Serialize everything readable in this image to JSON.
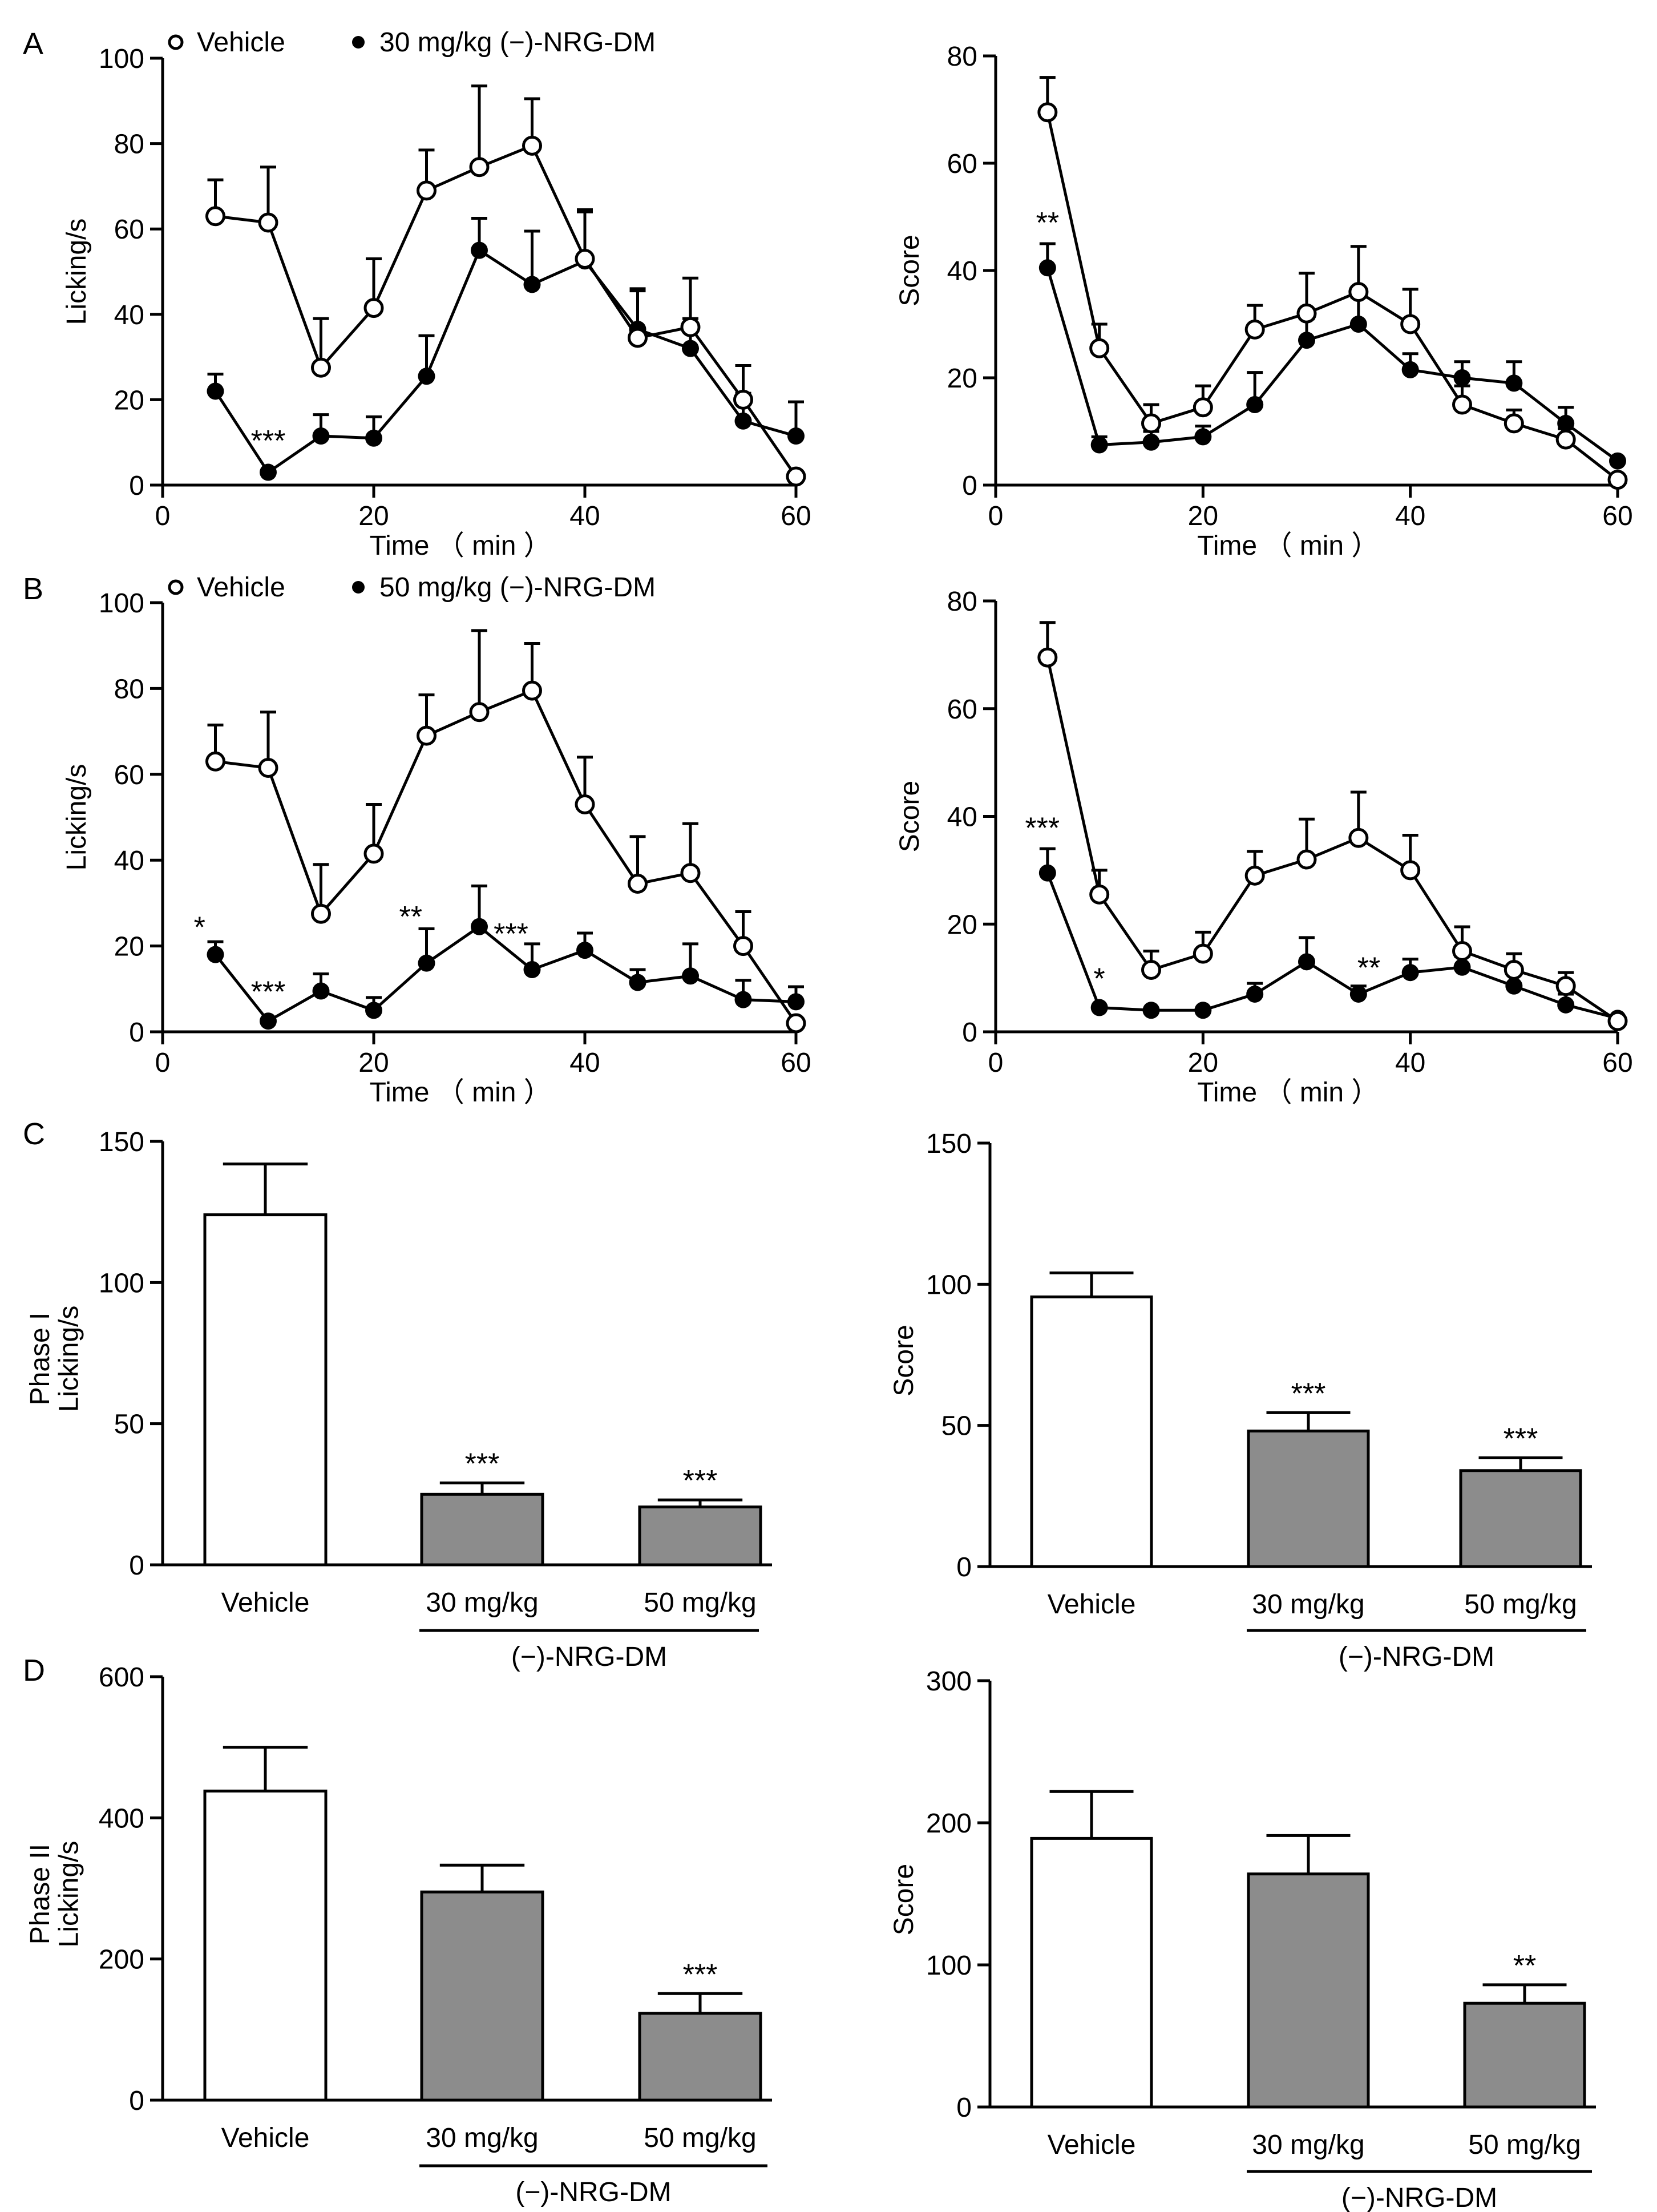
{
  "chart_data": [
    {
      "id": "A-left",
      "panel_label": "A",
      "type": "line",
      "xlabel": "Time （ min ）",
      "ylabel": "Licking/s",
      "xlim": [
        0,
        60
      ],
      "ylim": [
        0,
        100
      ],
      "xticks": [
        0,
        20,
        40,
        60
      ],
      "yticks": [
        0,
        20,
        40,
        60,
        80,
        100
      ],
      "legend": [
        "○ Vehicle",
        "● 30 mg/kg (−)-NRG-DM"
      ],
      "x": [
        5,
        10,
        15,
        20,
        25,
        30,
        35,
        40,
        45,
        50,
        55,
        60
      ],
      "series": [
        {
          "name": "Vehicle",
          "marker": "open",
          "values": [
            63,
            61.5,
            27.5,
            41.5,
            69,
            74.5,
            79.5,
            53,
            34.5,
            37,
            20,
            2
          ],
          "errors": [
            8.5,
            13,
            11.5,
            11.5,
            9.5,
            19,
            11,
            11,
            11,
            11.5,
            8,
            0
          ]
        },
        {
          "name": "30 mg/kg (−)-NRG-DM",
          "marker": "filled",
          "values": [
            22,
            3,
            11.5,
            11,
            25.5,
            55,
            47,
            52.5,
            36.5,
            32,
            15,
            11.5
          ],
          "errors": [
            4,
            0,
            5,
            5,
            9.5,
            7.5,
            12.5,
            12,
            9.5,
            7,
            6.5,
            8
          ]
        }
      ],
      "annotations": [
        {
          "x": 10,
          "y": 8,
          "text": "***"
        }
      ]
    },
    {
      "id": "A-right",
      "panel_label": "",
      "type": "line",
      "xlabel": "Time （ min ）",
      "ylabel": "Score",
      "xlim": [
        0,
        60
      ],
      "ylim": [
        0,
        80
      ],
      "xticks": [
        0,
        20,
        40,
        60
      ],
      "yticks": [
        0,
        20,
        40,
        60,
        80
      ],
      "legend": [],
      "x": [
        5,
        10,
        15,
        20,
        25,
        30,
        35,
        40,
        45,
        50,
        55,
        60
      ],
      "series": [
        {
          "name": "Vehicle",
          "marker": "open",
          "values": [
            69.5,
            25.5,
            11.5,
            14.5,
            29,
            32,
            36,
            30,
            15,
            11.5,
            8.5,
            1
          ],
          "errors": [
            6.5,
            4.5,
            3.5,
            4,
            4.5,
            7.5,
            8.5,
            6.5,
            3.5,
            2.5,
            2,
            0
          ]
        },
        {
          "name": "30 mg/kg (−)-NRG-DM",
          "marker": "filled",
          "values": [
            40.5,
            7.5,
            8,
            9,
            15,
            27,
            30,
            21.5,
            20,
            19,
            11.5,
            4.5
          ],
          "errors": [
            4.5,
            1.5,
            2,
            2,
            6,
            4,
            5,
            3,
            3,
            4,
            3,
            0
          ]
        }
      ],
      "annotations": [
        {
          "x": 5,
          "y": 47,
          "text": "**"
        }
      ]
    },
    {
      "id": "B-left",
      "panel_label": "B",
      "type": "line",
      "xlabel": "Time （ min ）",
      "ylabel": "Licking/s",
      "xlim": [
        0,
        60
      ],
      "ylim": [
        0,
        100
      ],
      "xticks": [
        0,
        20,
        40,
        60
      ],
      "yticks": [
        0,
        20,
        40,
        60,
        80,
        100
      ],
      "legend": [
        "○ Vehicle",
        "● 50 mg/kg (−)-NRG-DM"
      ],
      "x": [
        5,
        10,
        15,
        20,
        25,
        30,
        35,
        40,
        45,
        50,
        55,
        60
      ],
      "series": [
        {
          "name": "Vehicle",
          "marker": "open",
          "values": [
            63,
            61.5,
            27.5,
            41.5,
            69,
            74.5,
            79.5,
            53,
            34.5,
            37,
            20,
            2
          ],
          "errors": [
            8.5,
            13,
            11.5,
            11.5,
            9.5,
            19,
            11,
            11,
            11,
            11.5,
            8,
            0
          ]
        },
        {
          "name": "50 mg/kg (−)-NRG-DM",
          "marker": "filled",
          "values": [
            18,
            2.5,
            9.5,
            5,
            16,
            24.5,
            14.5,
            19,
            11.5,
            13,
            7.5,
            7
          ],
          "errors": [
            3,
            0,
            4,
            3,
            8,
            9.5,
            6,
            4,
            3,
            7.5,
            4.5,
            3.5
          ]
        }
      ],
      "annotations": [
        {
          "x": 3.5,
          "y": 22,
          "text": "*"
        },
        {
          "x": 10,
          "y": 7,
          "text": "***"
        },
        {
          "x": 23.5,
          "y": 24.5,
          "text": "**"
        },
        {
          "x": 33,
          "y": 20.5,
          "text": "***"
        }
      ]
    },
    {
      "id": "B-right",
      "panel_label": "",
      "type": "line",
      "xlabel": "Time （ min ）",
      "ylabel": "Score",
      "xlim": [
        0,
        60
      ],
      "ylim": [
        0,
        80
      ],
      "xticks": [
        0,
        20,
        40,
        60
      ],
      "yticks": [
        0,
        20,
        40,
        60,
        80
      ],
      "legend": [],
      "x": [
        5,
        10,
        15,
        20,
        25,
        30,
        35,
        40,
        45,
        50,
        55,
        60
      ],
      "series": [
        {
          "name": "Vehicle",
          "marker": "open",
          "values": [
            69.5,
            25.5,
            11.5,
            14.5,
            29,
            32,
            36,
            30,
            15,
            11.5,
            8.5,
            2
          ],
          "errors": [
            6.5,
            4.5,
            3.5,
            4,
            4.5,
            7.5,
            8.5,
            6.5,
            4.5,
            3,
            2.5,
            0
          ]
        },
        {
          "name": "50 mg/kg (−)-NRG-DM",
          "marker": "filled",
          "values": [
            29.5,
            4.5,
            4,
            4,
            7,
            13,
            7,
            11,
            12,
            8.5,
            5,
            2.5
          ],
          "errors": [
            4.5,
            0,
            0,
            0,
            2,
            4.5,
            1.5,
            2.5,
            2,
            2.5,
            2,
            0
          ]
        }
      ],
      "annotations": [
        {
          "x": 4.5,
          "y": 36,
          "text": "***"
        },
        {
          "x": 10,
          "y": 8,
          "text": "*"
        },
        {
          "x": 36,
          "y": 10,
          "text": "**"
        }
      ]
    },
    {
      "id": "C-left",
      "panel_label": "C",
      "type": "bar",
      "ylabel": "Phase I\nLicking/s",
      "ylim": [
        0,
        150
      ],
      "yticks": [
        0,
        50,
        100,
        150
      ],
      "categories": [
        "Vehicle",
        "30 mg/kg",
        "50 mg/kg"
      ],
      "values": [
        124,
        25,
        20.5
      ],
      "errors": [
        18,
        4,
        2.5
      ],
      "fills": [
        "#ffffff",
        "#8c8c8c",
        "#8c8c8c"
      ],
      "significance": [
        "",
        "***",
        "***"
      ],
      "group_label": "(−)-NRG-DM"
    },
    {
      "id": "C-right",
      "panel_label": "",
      "type": "bar",
      "ylabel": "Score",
      "ylim": [
        0,
        150
      ],
      "yticks": [
        0,
        50,
        100,
        150
      ],
      "categories": [
        "Vehicle",
        "30 mg/kg",
        "50 mg/kg"
      ],
      "values": [
        95.5,
        48,
        34
      ],
      "errors": [
        8.5,
        6.5,
        4.5
      ],
      "fills": [
        "#ffffff",
        "#8c8c8c",
        "#8c8c8c"
      ],
      "significance": [
        "",
        "***",
        "***"
      ],
      "group_label": "(−)-NRG-DM"
    },
    {
      "id": "D-left",
      "panel_label": "D",
      "type": "bar",
      "ylabel": "Phase II\nLicking/s",
      "ylim": [
        0,
        600
      ],
      "yticks": [
        0,
        200,
        400,
        600
      ],
      "categories": [
        "Vehicle",
        "30 mg/kg",
        "50 mg/kg"
      ],
      "values": [
        438,
        295,
        123
      ],
      "errors": [
        62,
        38,
        28
      ],
      "fills": [
        "#ffffff",
        "#8c8c8c",
        "#8c8c8c"
      ],
      "significance": [
        "",
        "",
        "***"
      ],
      "group_label": "(−)-NRG-DM"
    },
    {
      "id": "D-right",
      "panel_label": "",
      "type": "bar",
      "ylabel": "Score",
      "ylim": [
        0,
        300
      ],
      "yticks": [
        0,
        100,
        200,
        300
      ],
      "categories": [
        "Vehicle",
        "30 mg/kg",
        "50 mg/kg"
      ],
      "values": [
        189,
        164,
        73
      ],
      "errors": [
        33,
        27,
        13
      ],
      "fills": [
        "#ffffff",
        "#8c8c8c",
        "#8c8c8c"
      ],
      "significance": [
        "",
        "",
        "**"
      ],
      "group_label": "(−)-NRG-DM"
    }
  ]
}
